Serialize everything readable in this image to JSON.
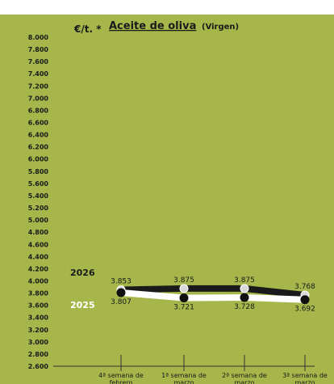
{
  "header": {
    "unit": "€/t. *",
    "title": "Aceite de oliva",
    "title_suffix": "(Virgen)"
  },
  "colors": {
    "panel": "#a7b64a",
    "axis": "#333333",
    "series_2026": "#1a1a1a",
    "series_2025": "#ffffff",
    "dot_2026": "#d9d9d9",
    "dot_2025": "#111111"
  },
  "chart_data": {
    "type": "line",
    "title": "Aceite de oliva (Virgen)",
    "ylabel": "€/t. *",
    "ylim": [
      2600,
      8000
    ],
    "ytick_step": 200,
    "yticks": [
      "8.000",
      "7.800",
      "7.600",
      "7.400",
      "7.200",
      "7.000",
      "6.800",
      "6.600",
      "6.400",
      "6.200",
      "6.000",
      "5.800",
      "5.600",
      "5.400",
      "5.200",
      "5.000",
      "4.800",
      "4.600",
      "4.400",
      "4.200",
      "4.000",
      "3.800",
      "3.600",
      "3.400",
      "3.200",
      "3.000",
      "2.800",
      "2.600"
    ],
    "categories": [
      "4ª semana de febrero",
      "1ª semana de marzo",
      "2ª semana de marzo",
      "3ª semana de marzo"
    ],
    "series": [
      {
        "name": "2026",
        "values": [
          3853,
          3875,
          3875,
          3768
        ],
        "labels": [
          "3.853",
          "3.875",
          "3.875",
          "3.768"
        ]
      },
      {
        "name": "2025",
        "values": [
          3807,
          3721,
          3728,
          3692
        ],
        "labels": [
          "3.807",
          "3.721",
          "3.728",
          "3.692"
        ]
      }
    ]
  }
}
